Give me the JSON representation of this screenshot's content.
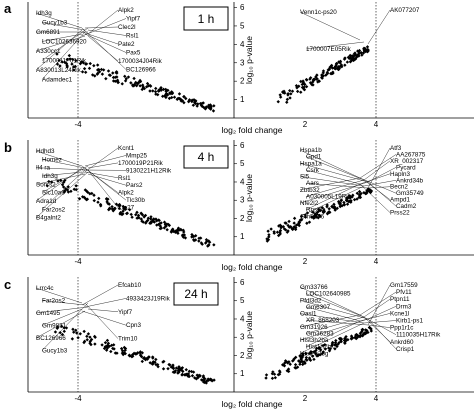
{
  "chart_data": [
    {
      "type": "scatter",
      "panel": "a",
      "time_label": "1 h",
      "xlabel": "log₂ fold change",
      "ylabel": "log₁₀ p-value",
      "xlim": [
        -6.5,
        5.0
      ],
      "ylim": [
        0,
        6.3
      ],
      "x_ticks": [
        "-4",
        "2",
        "4"
      ],
      "y_ticks": [
        "1",
        "2",
        "3",
        "4",
        "5",
        "6"
      ],
      "thresholds": [
        -4,
        4
      ],
      "left_cloud": {
        "x_start": -4.6,
        "x_end": -0.5,
        "y_start": 3.3,
        "y_end": 0.5
      },
      "right_cloud": {
        "x_start": 1.2,
        "x_end": 3.8,
        "y_start": 0.9,
        "y_end": 3.8
      },
      "labels_left": [
        "Idh3g",
        "Gucy1b3",
        "Gm6891",
        "LOC102636920",
        "A330cc1",
        "1700011F01Rik",
        "A830013L24Rik",
        "Adamdec1",
        "Alpk2",
        "Yipf7",
        "Clec2l",
        "Rsl1",
        "Pate2",
        "Pax5",
        "1700034J04Rik",
        "BC126966"
      ],
      "labels_right": [
        "Venn1c-ps20",
        "1700007E05Rik",
        "AK077207"
      ]
    },
    {
      "type": "scatter",
      "panel": "b",
      "time_label": "4 h",
      "xlabel": "log₂ fold change",
      "ylabel": "log₁₀ p-value",
      "xlim": [
        -6.5,
        5.0
      ],
      "ylim": [
        0,
        6.3
      ],
      "x_ticks": [
        "-4",
        "2",
        "4"
      ],
      "y_ticks": [
        "1",
        "2",
        "3",
        "4",
        "5",
        "6"
      ],
      "thresholds": [
        -4,
        4
      ],
      "left_cloud": {
        "x_start": -4.9,
        "x_end": -0.5,
        "y_start": 4.2,
        "y_end": 0.5
      },
      "right_cloud": {
        "x_start": 0.9,
        "x_end": 3.9,
        "y_start": 1.0,
        "y_end": 3.6
      },
      "labels_left": [
        "Hdhd3",
        "Homez",
        "Il4 ra",
        "Idh3g",
        "Sorcs2",
        "Slc10a6",
        "Adra1d",
        "Far2os2",
        "B4galnt2",
        "Kcnt1",
        "Mmp25",
        "1700019P21Rik",
        "9130221H12Rik",
        "Rsl1",
        "Pars2",
        "Alpk2",
        "Tlc30b",
        "Zfp27"
      ],
      "labels_right": [
        "Hspa1b",
        "Gpd1",
        "Hspa1a",
        "Csrk",
        "Sl5",
        "Aars",
        "Zbtb32",
        "A030005L19Rik",
        "Nfe2l2",
        "Rpsl5a",
        "Gm5176",
        "Atf3",
        "AA267875",
        "XR_002317",
        "Pycard",
        "Hapln3",
        "Ankrd34b",
        "Becn2",
        "Gm35749",
        "Ampd1",
        "Cadm2",
        "Prss22"
      ]
    },
    {
      "type": "scatter",
      "panel": "c",
      "time_label": "24 h",
      "xlabel": "log₂ fold change",
      "ylabel": "log₁₀ p-value",
      "xlim": [
        -6.5,
        5.0
      ],
      "ylim": [
        0,
        6.3
      ],
      "x_ticks": [
        "-4",
        "2",
        "4"
      ],
      "y_ticks": [
        "1",
        "2",
        "3",
        "4",
        "5",
        "6"
      ],
      "thresholds": [
        -4,
        4
      ],
      "left_cloud": {
        "x_start": -4.6,
        "x_end": -0.5,
        "y_start": 3.6,
        "y_end": 0.5
      },
      "right_cloud": {
        "x_start": 0.9,
        "x_end": 3.9,
        "y_start": 0.9,
        "y_end": 3.5
      },
      "labels_left": [
        "Lrrc4c",
        "Far2os2",
        "Gm1495",
        "Gm9831",
        "BC126966",
        "Gucy1b3",
        "Efcab10",
        "4933423J19Rik",
        "Yipf7",
        "Cpn3",
        "Trim10"
      ],
      "labels_right": [
        "Gm33766",
        "LOC102640985",
        "Pfdl3d2",
        "Gm6307",
        "Oasl1",
        "XR_868203",
        "Gm31926",
        "Gm36283",
        "Hist3h2ba",
        "Hist1h2bk",
        "Hist2h2bg",
        "Gm17559",
        "Pfv11",
        "Ptpn11",
        "Drm3",
        "Kcne1l",
        "Kirb1-ps1",
        "Ppp1r1c",
        "1110035H17Rik",
        "Ankrd60",
        "Crisp1"
      ]
    }
  ]
}
